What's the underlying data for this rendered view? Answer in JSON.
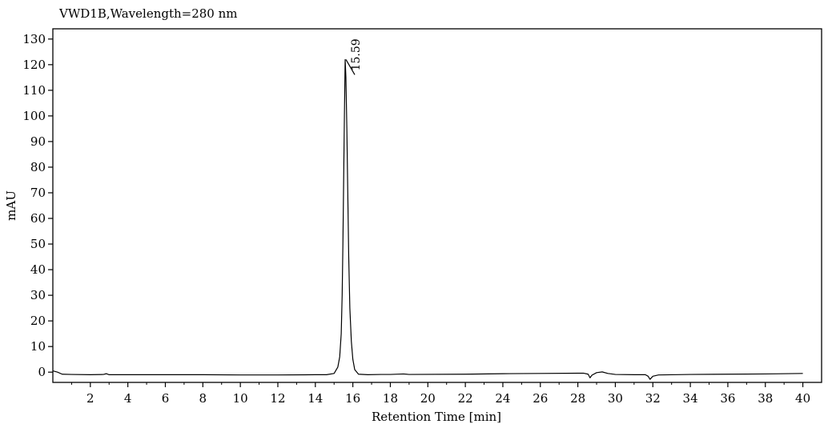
{
  "chart_data": {
    "type": "line",
    "title": "VWD1B,Wavelength=280 nm",
    "xlabel": "Retention Time [min]",
    "ylabel": "mAU",
    "xlim": [
      0,
      41
    ],
    "ylim": [
      -4,
      134
    ],
    "x_ticks": [
      2,
      4,
      6,
      8,
      10,
      12,
      14,
      16,
      18,
      20,
      22,
      24,
      26,
      28,
      30,
      32,
      34,
      36,
      38,
      40
    ],
    "y_ticks": [
      0,
      10,
      20,
      30,
      40,
      50,
      60,
      70,
      80,
      90,
      100,
      110,
      120,
      130
    ],
    "series": [
      {
        "color": "#000000",
        "points": [
          [
            0.0,
            0.5
          ],
          [
            0.25,
            0.0
          ],
          [
            0.5,
            -0.8
          ],
          [
            1.0,
            -0.9
          ],
          [
            2.0,
            -1.0
          ],
          [
            2.7,
            -0.9
          ],
          [
            2.85,
            -0.6
          ],
          [
            3.0,
            -1.0
          ],
          [
            4.0,
            -1.0
          ],
          [
            6.0,
            -1.0
          ],
          [
            8.0,
            -1.0
          ],
          [
            10.0,
            -1.1
          ],
          [
            12.0,
            -1.1
          ],
          [
            14.0,
            -1.0
          ],
          [
            14.6,
            -1.0
          ],
          [
            15.0,
            -0.5
          ],
          [
            15.2,
            2.0
          ],
          [
            15.3,
            6.0
          ],
          [
            15.38,
            15.0
          ],
          [
            15.43,
            30.0
          ],
          [
            15.47,
            50.0
          ],
          [
            15.51,
            75.0
          ],
          [
            15.55,
            100.0
          ],
          [
            15.59,
            122.0
          ],
          [
            15.63,
            115.0
          ],
          [
            15.68,
            95.0
          ],
          [
            15.73,
            70.0
          ],
          [
            15.78,
            45.0
          ],
          [
            15.84,
            25.0
          ],
          [
            15.92,
            12.0
          ],
          [
            16.0,
            5.0
          ],
          [
            16.1,
            1.0
          ],
          [
            16.3,
            -0.8
          ],
          [
            16.8,
            -1.0
          ],
          [
            17.5,
            -0.9
          ],
          [
            18.0,
            -0.9
          ],
          [
            18.7,
            -0.7
          ],
          [
            19.0,
            -0.9
          ],
          [
            22.0,
            -0.8
          ],
          [
            24.0,
            -0.6
          ],
          [
            26.0,
            -0.5
          ],
          [
            28.0,
            -0.4
          ],
          [
            28.3,
            -0.4
          ],
          [
            28.55,
            -0.8
          ],
          [
            28.65,
            -2.2
          ],
          [
            28.75,
            -1.2
          ],
          [
            29.0,
            -0.2
          ],
          [
            29.3,
            0.1
          ],
          [
            29.6,
            -0.5
          ],
          [
            30.0,
            -0.9
          ],
          [
            31.0,
            -1.0
          ],
          [
            31.6,
            -1.0
          ],
          [
            31.75,
            -1.6
          ],
          [
            31.85,
            -2.8
          ],
          [
            32.0,
            -1.6
          ],
          [
            32.3,
            -1.1
          ],
          [
            34.0,
            -0.9
          ],
          [
            36.0,
            -0.8
          ],
          [
            38.0,
            -0.7
          ],
          [
            40.0,
            -0.5
          ]
        ]
      }
    ],
    "peak_annotations": [
      {
        "x": 15.59,
        "y": 122.0,
        "label": "15.59"
      }
    ],
    "grid": false,
    "legend": "none"
  }
}
